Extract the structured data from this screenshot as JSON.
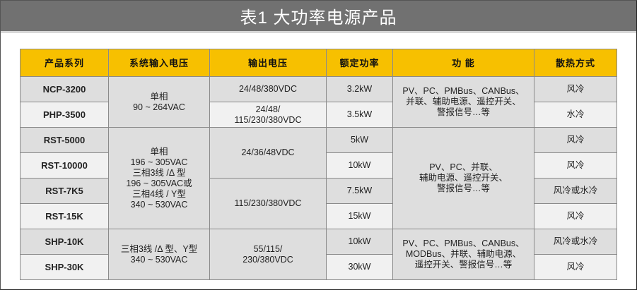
{
  "title": "表1 大功率电源产品",
  "headers": [
    "产品系列",
    "系统输入电压",
    "输出电压",
    "额定功率",
    "功 能",
    "散热方式"
  ],
  "rows": [
    {
      "model": "NCP-3200",
      "power": "3.2kW",
      "cooling": "风冷"
    },
    {
      "model": "PHP-3500",
      "power": "3.5kW",
      "cooling": "水冷"
    },
    {
      "model": "RST-5000",
      "power": "5kW",
      "cooling": "风冷"
    },
    {
      "model": "RST-10000",
      "power": "10kW",
      "cooling": "风冷"
    },
    {
      "model": "RST-7K5",
      "power": "7.5kW",
      "cooling": "风冷或水冷"
    },
    {
      "model": "RST-15K",
      "power": "15kW",
      "cooling": "风冷"
    },
    {
      "model": "SHP-10K",
      "power": "10kW",
      "cooling": "风冷或水冷"
    },
    {
      "model": "SHP-30K",
      "power": "30kW",
      "cooling": "风冷"
    }
  ],
  "input_groups": [
    [
      "单相",
      "90 ~ 264VAC"
    ],
    [
      "单相",
      "196 ~ 305VAC",
      "三相3线 /Δ 型",
      "196 ~ 305VAC或",
      "三相4线 / Y型",
      "340 ~ 530VAC"
    ],
    [
      "三相3线 /Δ 型、Y型",
      "340 ~ 530VAC"
    ]
  ],
  "output_cells": [
    [
      "24/48/380VDC"
    ],
    [
      "24/48/",
      "115/230/380VDC"
    ],
    [
      "24/36/48VDC"
    ],
    [
      "115/230/380VDC"
    ],
    [
      "55/115/",
      "230/380VDC"
    ]
  ],
  "function_groups": [
    [
      "PV、PC、PMBus、CANBus、",
      "并联、辅助电源、遥控开关、",
      "警报信号…等"
    ],
    [
      "PV、PC、并联、",
      "辅助电源、遥控开关、",
      "警报信号…等"
    ],
    [
      "PV、PC、PMBus、CANBus、",
      "MODBus、并联、辅助电源、",
      "遥控开关、警报信号…等"
    ]
  ],
  "colors": {
    "header": "#f7c000",
    "title_bar": "#717171",
    "row_dark": "#dedede",
    "row_light": "#f1f1f1"
  }
}
